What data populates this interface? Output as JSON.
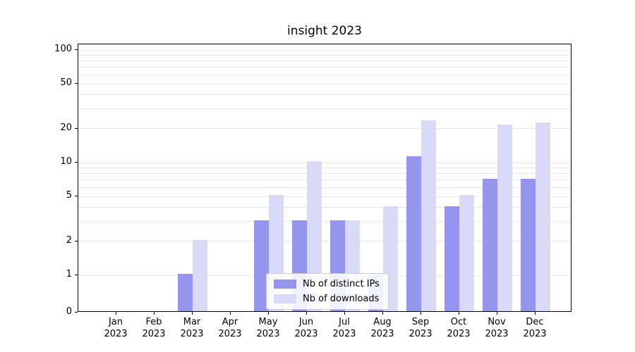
{
  "chart_data": {
    "type": "bar",
    "title": "insight 2023",
    "categories": [
      "Jan 2023",
      "Feb 2023",
      "Mar 2023",
      "Apr 2023",
      "May 2023",
      "Jun 2023",
      "Jul 2023",
      "Aug 2023",
      "Sep 2023",
      "Oct 2023",
      "Nov 2023",
      "Dec 2023"
    ],
    "series": [
      {
        "name": "Nb of distinct IPs",
        "color": "#9595ee",
        "values": [
          0,
          0,
          1,
          0,
          3,
          3,
          3,
          1,
          11,
          4,
          7,
          7
        ]
      },
      {
        "name": "Nb of downloads",
        "color": "#d9d9f8",
        "values": [
          0,
          0,
          2,
          0,
          5,
          10,
          3,
          4,
          23,
          5,
          21,
          22
        ]
      }
    ],
    "yscale": "symlog",
    "yticks": [
      0,
      1,
      2,
      5,
      10,
      20,
      50,
      100
    ],
    "minor_gridlines": [
      1,
      2,
      3,
      4,
      5,
      6,
      7,
      8,
      9,
      10,
      20,
      30,
      40,
      50,
      60,
      70,
      80,
      90,
      100
    ],
    "ylim": [
      0,
      110
    ],
    "grid": true,
    "legend_position": "lower center"
  }
}
